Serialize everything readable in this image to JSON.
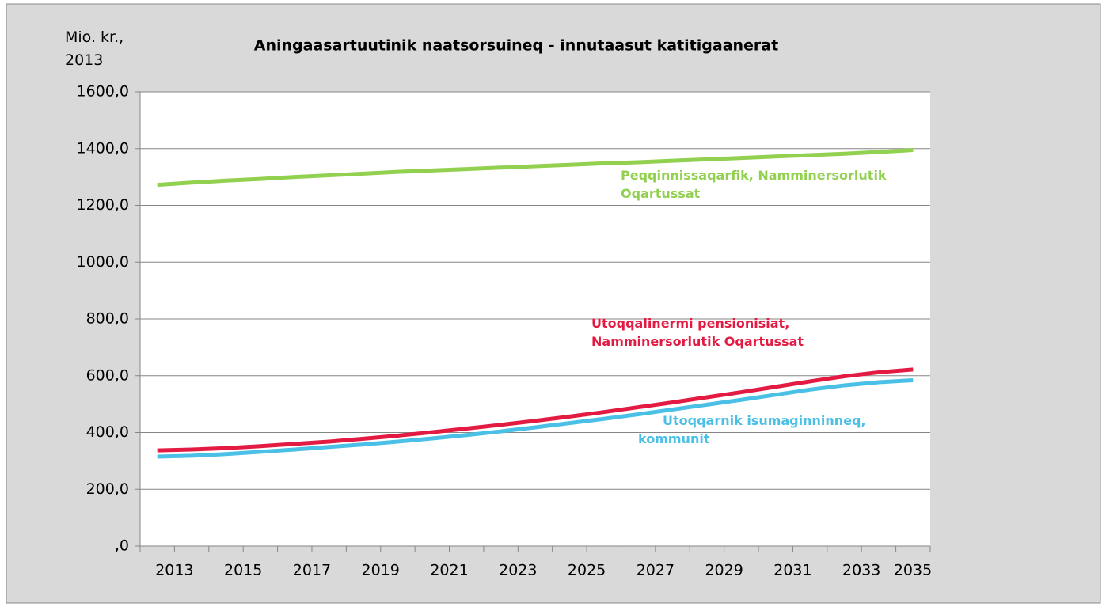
{
  "chart_data": {
    "type": "line",
    "title": "Aningaasartuutinik naatsorsuineq - innutaasut katitigaanerat",
    "y_label": "Mio. kr., 2013",
    "categories": [
      "2013",
      null,
      "2015",
      null,
      "2017",
      null,
      "2019",
      null,
      "2021",
      null,
      "2023",
      null,
      "2025",
      null,
      "2027",
      null,
      "2029",
      null,
      "2031",
      null,
      "2033",
      null,
      "2035"
    ],
    "series": [
      {
        "name": "Peqqinnissaqarfik, Namminersorlutik Oqartussat",
        "color": "#92d050",
        "values": [
          1272,
          1280,
          1287,
          1293,
          1300,
          1306,
          1312,
          1318,
          1323,
          1328,
          1333,
          1338,
          1343,
          1348,
          1352,
          1357,
          1362,
          1367,
          1372,
          1377,
          1382,
          1388,
          1395
        ]
      },
      {
        "name": "Utoqqalinermi pensionisiat, Namminersorlutik Oqartussat",
        "color": "#e31b43",
        "values": [
          337,
          340,
          345,
          352,
          360,
          368,
          378,
          389,
          401,
          414,
          427,
          441,
          456,
          472,
          489,
          506,
          524,
          542,
          561,
          580,
          598,
          612,
          622
        ]
      },
      {
        "name": "Utoqqarnik isumaginninneq, kommunit",
        "color": "#4bc0e6",
        "values": [
          315,
          318,
          324,
          332,
          340,
          349,
          358,
          368,
          379,
          391,
          404,
          418,
          433,
          448,
          464,
          481,
          498,
          515,
          533,
          551,
          566,
          577,
          584
        ]
      }
    ],
    "ylim": [
      0,
      1600
    ],
    "yticks": [
      {
        "value": 0,
        "label": ",0"
      },
      {
        "value": 200,
        "label": "200,0"
      },
      {
        "value": 400,
        "label": "400,0"
      },
      {
        "value": 600,
        "label": "600,0"
      },
      {
        "value": 800,
        "label": "800,0"
      },
      {
        "value": 1000,
        "label": "1000,0"
      },
      {
        "value": 1200,
        "label": "1200,0"
      },
      {
        "value": 1400,
        "label": "1400,0"
      },
      {
        "value": 1600,
        "label": "1600,0"
      }
    ],
    "grid": true
  }
}
